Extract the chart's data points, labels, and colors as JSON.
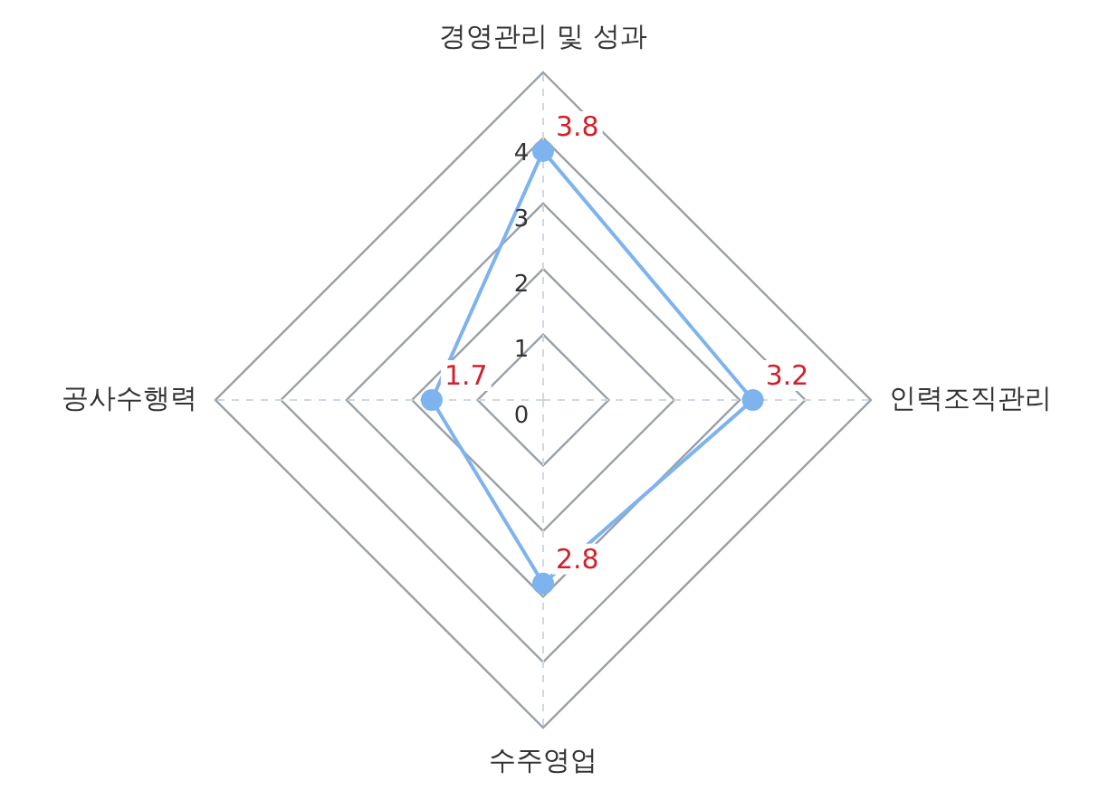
{
  "chart_data": {
    "type": "radar",
    "categories": [
      "경영관리 및 성과",
      "인력조직관리",
      "수주영업",
      "공사수행력"
    ],
    "series": [
      {
        "color": "#7eb3ee",
        "values": [
          3.8,
          3.2,
          2.8,
          1.7
        ]
      }
    ],
    "ylim": [
      0,
      5
    ],
    "yticks": [
      0,
      1,
      2,
      3,
      4
    ],
    "grid": true,
    "legend": false,
    "marker": "circle",
    "data_labels": true
  }
}
